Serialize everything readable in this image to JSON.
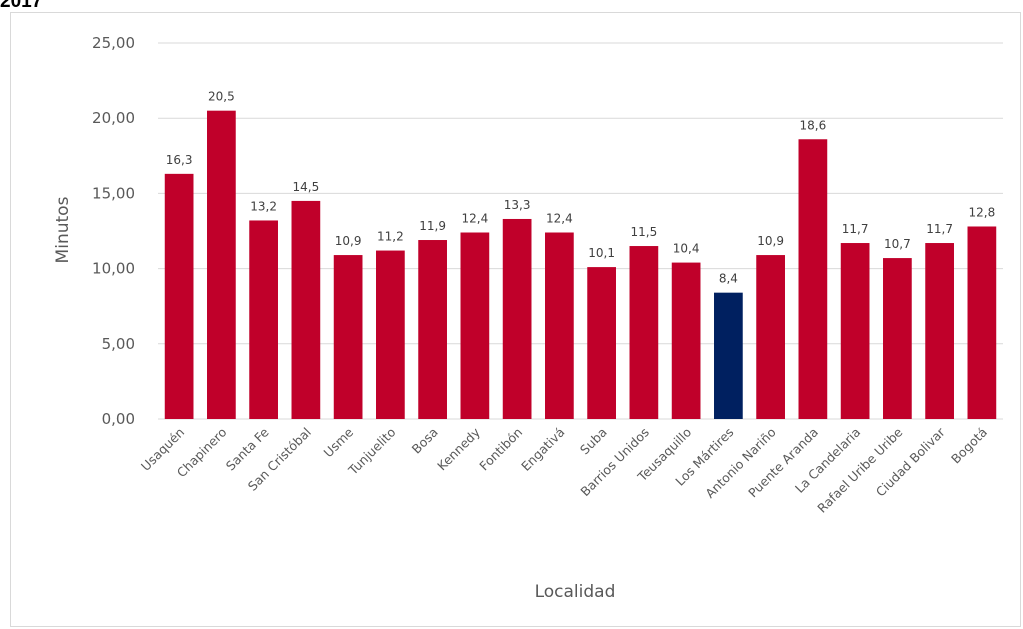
{
  "header": {
    "partial_title": "2017"
  },
  "colors": {
    "bar_default": "#c0002a",
    "bar_highlight": "#002060",
    "gridline": "#d9d9d9",
    "text": "#595959"
  },
  "chart_data": {
    "type": "bar",
    "xlabel": "Localidad",
    "ylabel": "Minutos",
    "ylim": [
      0,
      25
    ],
    "y_ticks": [
      "0,00",
      "5,00",
      "10,00",
      "15,00",
      "20,00",
      "25,00"
    ],
    "grid": true,
    "categories": [
      "Usaquén",
      "Chapinero",
      "Santa Fe",
      "San Cristóbal",
      "Usme",
      "Tunjuelito",
      "Bosa",
      "Kennedy",
      "Fontibón",
      "Engativá",
      "Suba",
      "Barrios Unidos",
      "Teusaquillo",
      "Los Mártires",
      "Antonio Nariño",
      "Puente Aranda",
      "La Candelaria",
      "Rafael Uribe Uribe",
      "Ciudad Bolivar",
      "Bogotá"
    ],
    "values": [
      16.3,
      20.5,
      13.2,
      14.5,
      10.9,
      11.2,
      11.9,
      12.4,
      13.3,
      12.4,
      10.1,
      11.5,
      10.4,
      8.4,
      10.9,
      18.6,
      11.7,
      10.7,
      11.7,
      12.8
    ],
    "data_labels": [
      "16,3",
      "20,5",
      "13,2",
      "14,5",
      "10,9",
      "11,2",
      "11,9",
      "12,4",
      "13,3",
      "12,4",
      "10,1",
      "11,5",
      "10,4",
      "8,4",
      "10,9",
      "18,6",
      "11,7",
      "10,7",
      "11,7",
      "12,8"
    ],
    "highlight_category": "Los Mártires"
  }
}
